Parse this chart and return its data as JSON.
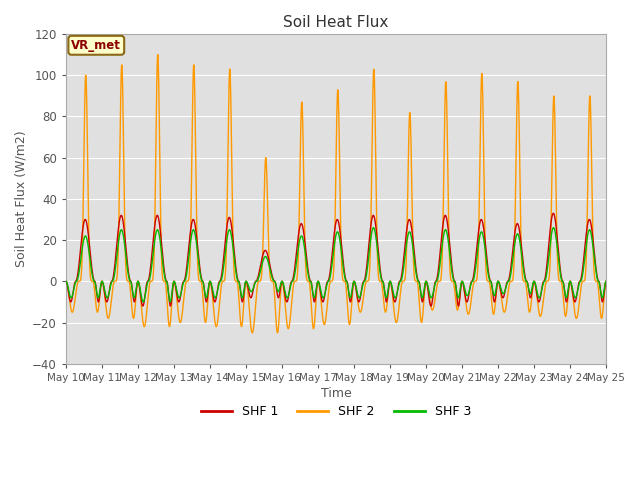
{
  "title": "Soil Heat Flux",
  "xlabel": "Time",
  "ylabel": "Soil Heat Flux (W/m2)",
  "ylim": [
    -40,
    120
  ],
  "yticks": [
    -40,
    -20,
    0,
    20,
    40,
    60,
    80,
    100,
    120
  ],
  "n_days": 15,
  "start_day": 10,
  "background_color": "#e0e0e0",
  "fig_background": "#ffffff",
  "line_colors": {
    "SHF 1": "#cc0000",
    "SHF 2": "#ff9900",
    "SHF 3": "#00bb00"
  },
  "legend_labels": [
    "SHF 1",
    "SHF 2",
    "SHF 3"
  ],
  "annotation_text": "VR_met",
  "annotation_box_facecolor": "#ffffcc",
  "annotation_box_edge": "#8B6914",
  "grid_color": "#ffffff",
  "tick_label_color": "#555555",
  "shf2_peaks": [
    100,
    105,
    110,
    105,
    103,
    60,
    87,
    93,
    103,
    82,
    97,
    101,
    97,
    90,
    90
  ],
  "shf2_nights": [
    -15,
    -18,
    -22,
    -20,
    -22,
    -25,
    -23,
    -21,
    -15,
    -20,
    -14,
    -16,
    -15,
    -17,
    -18
  ],
  "shf1_peaks": [
    30,
    32,
    32,
    30,
    31,
    15,
    28,
    30,
    32,
    30,
    32,
    30,
    28,
    33,
    30
  ],
  "shf1_nights": [
    -10,
    -10,
    -12,
    -10,
    -10,
    -8,
    -10,
    -10,
    -10,
    -10,
    -12,
    -10,
    -8,
    -10,
    -10
  ],
  "shf3_peaks": [
    22,
    25,
    25,
    25,
    25,
    12,
    22,
    24,
    26,
    24,
    25,
    24,
    23,
    26,
    25
  ],
  "shf3_nights": [
    -8,
    -8,
    -10,
    -8,
    -8,
    -5,
    -8,
    -8,
    -8,
    -8,
    -8,
    -7,
    -6,
    -8,
    -8
  ]
}
